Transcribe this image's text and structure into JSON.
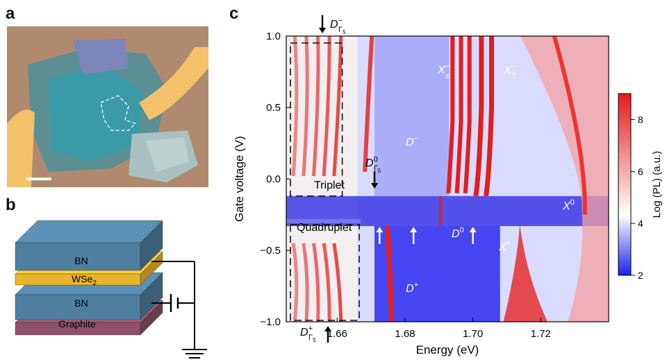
{
  "panels": {
    "a": "a",
    "b": "b",
    "c": "c"
  },
  "stack": {
    "layers": [
      "BN",
      "WSe",
      "BN",
      "Graphite"
    ],
    "wse2_subscript": "2",
    "colors": {
      "bn": "#4f7e9f",
      "wse2": "#e8b52a",
      "graphite": "#8d5168"
    }
  },
  "chart_data": {
    "type": "heatmap",
    "xlabel": "Energy (eV)",
    "ylabel": "Gate voltage (V)",
    "xlim": [
      1.645,
      1.74
    ],
    "ylim": [
      -1.0,
      1.0
    ],
    "xticks": [
      "1.66",
      "1.68",
      "1.70",
      "1.72"
    ],
    "xtick_values": [
      1.66,
      1.68,
      1.7,
      1.72
    ],
    "yticks": [
      "1.0",
      "0.5",
      "0.0",
      "−0.5",
      "−1.0"
    ],
    "ytick_values": [
      1.0,
      0.5,
      0.0,
      -0.5,
      -1.0
    ],
    "colorbar": {
      "label": "Log (PL) (a.u.)",
      "ticks": [
        "8",
        "6",
        "4",
        "2"
      ],
      "tick_values": [
        8,
        6,
        4,
        2
      ],
      "range": [
        2,
        9
      ],
      "colors": [
        "#1d1df0",
        "#ffffff",
        "#e41a1c"
      ]
    },
    "annotations": {
      "triplet": "Triplet",
      "quadruplet": "Quadruplet",
      "d_minus": "D",
      "d_plus": "D",
      "d_zero": "D",
      "xs_minus": "X",
      "xt_minus": "X",
      "x_plus": "X",
      "x_zero": "X",
      "d_gamma5_minus": "D",
      "d_gamma5_zero": "D",
      "d_gamma5_plus": "D"
    },
    "annotation_scripts": {
      "d_minus_sup": "−",
      "d_plus_sup": "+",
      "d_zero_sup": "0",
      "xs_sub": "s",
      "xs_sup": "−",
      "xt_sub": "T",
      "xt_sup": "−",
      "x_plus_sup": "+",
      "x_zero_sup": "0",
      "gamma5_sub": "Γ",
      "gamma5_subsub": "5",
      "g_minus_sup": "−",
      "g_zero_sup": "0",
      "g_plus_sup": "+"
    },
    "triplet_lines_eV": [
      1.6475,
      1.6505,
      1.6535,
      1.6565,
      1.6595
    ],
    "quadruplet_lines_eV": [
      1.6475,
      1.6505,
      1.6535,
      1.6565,
      1.6595
    ],
    "features": {
      "d_minus_line_eV": 1.669,
      "xs_lines_eV": [
        1.694,
        1.6965,
        1.699
      ],
      "xt_lines_eV": [
        1.7025,
        1.7055
      ],
      "x0_eV": 1.733,
      "d_plus_eV": 1.676,
      "x_plus_eV": 1.713,
      "up_arrows_eV": [
        1.6725,
        1.6825,
        1.7
      ]
    }
  }
}
